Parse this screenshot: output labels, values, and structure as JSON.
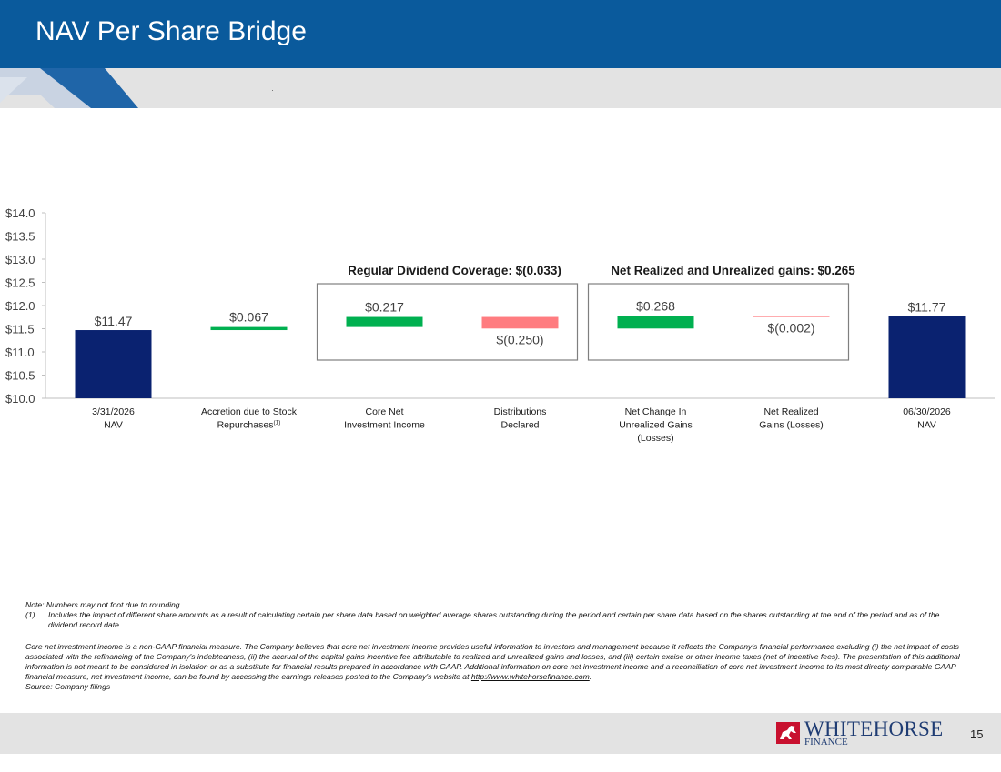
{
  "slide": {
    "title": "NAV Per Share Bridge",
    "page_number": "15"
  },
  "colors": {
    "header_blue": "#0a5a9c",
    "navy": "#0a2270",
    "increase_green": "#00b050",
    "decrease_red": "#ff7c80"
  },
  "chart_data": {
    "type": "bar",
    "subtype": "waterfall",
    "categories": [
      [
        "3/31/2026",
        "NAV"
      ],
      [
        "Accretion due to  Stock",
        "Repurchases(1)"
      ],
      [
        "Core Net",
        "Investment Income"
      ],
      [
        "Distributions",
        "Declared"
      ],
      [
        "Net Change In",
        "Unrealized Gains",
        "(Losses)"
      ],
      [
        "Net Realized",
        "Gains (Losses)"
      ],
      [
        "06/30/2026",
        "NAV"
      ]
    ],
    "values": [
      11.47,
      0.067,
      0.217,
      -0.25,
      0.268,
      -0.002,
      11.77
    ],
    "kinds": [
      "total",
      "delta",
      "delta",
      "delta",
      "delta",
      "delta",
      "total"
    ],
    "data_labels": [
      "$11.47",
      "$0.067",
      "$0.217",
      "$(0.250)",
      "$0.268",
      "$(0.002)",
      "$11.77"
    ],
    "ylim": [
      10.0,
      14.0
    ],
    "ytick_values": [
      10.0,
      10.5,
      11.0,
      11.5,
      12.0,
      12.5,
      13.0,
      13.5,
      14.0
    ],
    "yticks": [
      "$10.0",
      "$10.5",
      "$11.0",
      "$11.5",
      "$12.0",
      "$12.5",
      "$13.0",
      "$13.5",
      "$14.0"
    ],
    "grid": false,
    "groups": [
      {
        "label": "Regular Dividend Coverage: $(0.033)",
        "categories": [
          2,
          3
        ]
      },
      {
        "label": "Net Realized and Unrealized gains: $0.265",
        "categories": [
          4,
          5
        ]
      }
    ]
  },
  "notes": {
    "rounding": "Note: Numbers may not foot due to rounding.",
    "footnote_number": "(1)",
    "footnote_text": "Includes the impact of different share amounts as a result of calculating certain per share data based on weighted average shares outstanding during the period and certain per share data based on the shares outstanding at the end of the period and as of the dividend record date.",
    "non_gaap_text": "Core net investment income is a non-GAAP financial measure. The Company believes that core net investment income provides useful information to investors and management because it reflects the Company's financial performance excluding (i) the net impact of costs associated with the refinancing of the Company's indebtedness, (ii) the accrual of the capital gains incentive fee attributable to realized and unrealized gains and losses, and (iii) certain excise or other income taxes (net of incentive fees). The presentation of this additional information is not meant to be considered in isolation or as a substitute for financial results prepared in accordance with GAAP. Additional information on core net investment income and a reconciliation of core net investment income to its most directly comparable GAAP financial measure, net investment income, can be found by accessing the earnings releases posted to the Company's website at",
    "website_link": "http://www.whitehorsefinance.com",
    "website_end": ".",
    "source": "Source: Company filings"
  },
  "logo": {
    "name": "WHITEHORSE",
    "sub": "FINANCE"
  }
}
